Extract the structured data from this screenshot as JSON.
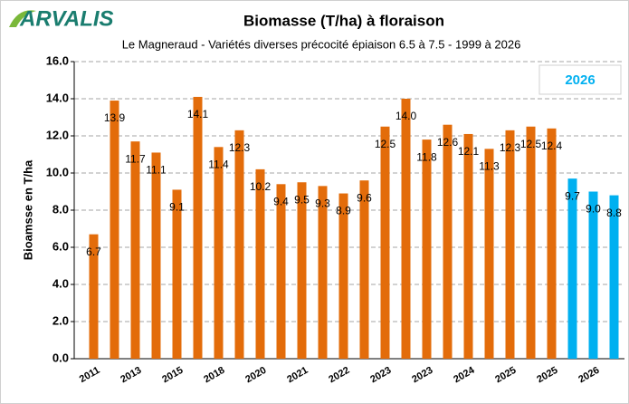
{
  "chart_data": {
    "type": "bar",
    "logo": "ARVALIS",
    "title": "Biomasse (T/ha) à floraison",
    "subtitle": "Le Magneraud - Variétés diverses précocité épiaison 6.5 à 7.5 - 1999 à 2026",
    "y_label": "Bioamsse en T/ha",
    "annotation": "2026",
    "categories": [
      "2011",
      null,
      "2013",
      null,
      "2015",
      null,
      "2018",
      null,
      "2020",
      null,
      "2021",
      null,
      "2022",
      null,
      "2023",
      null,
      "2023",
      null,
      "2024",
      null,
      "2025",
      null,
      "2025",
      null,
      "2026",
      null
    ],
    "values": [
      6.7,
      13.9,
      11.7,
      11.1,
      9.1,
      14.1,
      11.4,
      12.3,
      10.2,
      9.4,
      9.5,
      9.3,
      8.9,
      9.6,
      12.5,
      14.0,
      11.8,
      12.6,
      12.1,
      11.3,
      12.3,
      12.5,
      12.4,
      9.7,
      9.0,
      8.8
    ],
    "value_labels": [
      "6.7",
      "13.9",
      "11.7",
      "11.1",
      "9.1",
      "14.1",
      "11.4",
      "12.3",
      "10.2",
      "9.4",
      "9.5",
      "9.3",
      "8.9",
      "9.6",
      "12.5",
      "14.0",
      "11.8",
      "12.6",
      "12.1",
      "11.3",
      "12.3",
      "12.5",
      "12.4",
      "9.7",
      "9.0",
      "8.8"
    ],
    "colors": [
      "#e36c0a",
      "#e36c0a",
      "#e36c0a",
      "#e36c0a",
      "#e36c0a",
      "#e36c0a",
      "#e36c0a",
      "#e36c0a",
      "#e36c0a",
      "#e36c0a",
      "#e36c0a",
      "#e36c0a",
      "#e36c0a",
      "#e36c0a",
      "#e36c0a",
      "#e36c0a",
      "#e36c0a",
      "#e36c0a",
      "#e36c0a",
      "#e36c0a",
      "#e36c0a",
      "#e36c0a",
      "#e36c0a",
      "#00b0f0",
      "#00b0f0",
      "#00b0f0"
    ],
    "ylim": [
      0,
      16
    ],
    "yticks": [
      {
        "value": 0,
        "label": "0.0"
      },
      {
        "value": 2,
        "label": "2.0"
      },
      {
        "value": 4,
        "label": "4.0"
      },
      {
        "value": 6,
        "label": "6.0"
      },
      {
        "value": 8,
        "label": "8.0"
      },
      {
        "value": 10,
        "label": "10.0"
      },
      {
        "value": 12,
        "label": "12.0"
      },
      {
        "value": 14,
        "label": "14.0"
      },
      {
        "value": 16,
        "label": "16.0"
      }
    ],
    "grid": true
  }
}
